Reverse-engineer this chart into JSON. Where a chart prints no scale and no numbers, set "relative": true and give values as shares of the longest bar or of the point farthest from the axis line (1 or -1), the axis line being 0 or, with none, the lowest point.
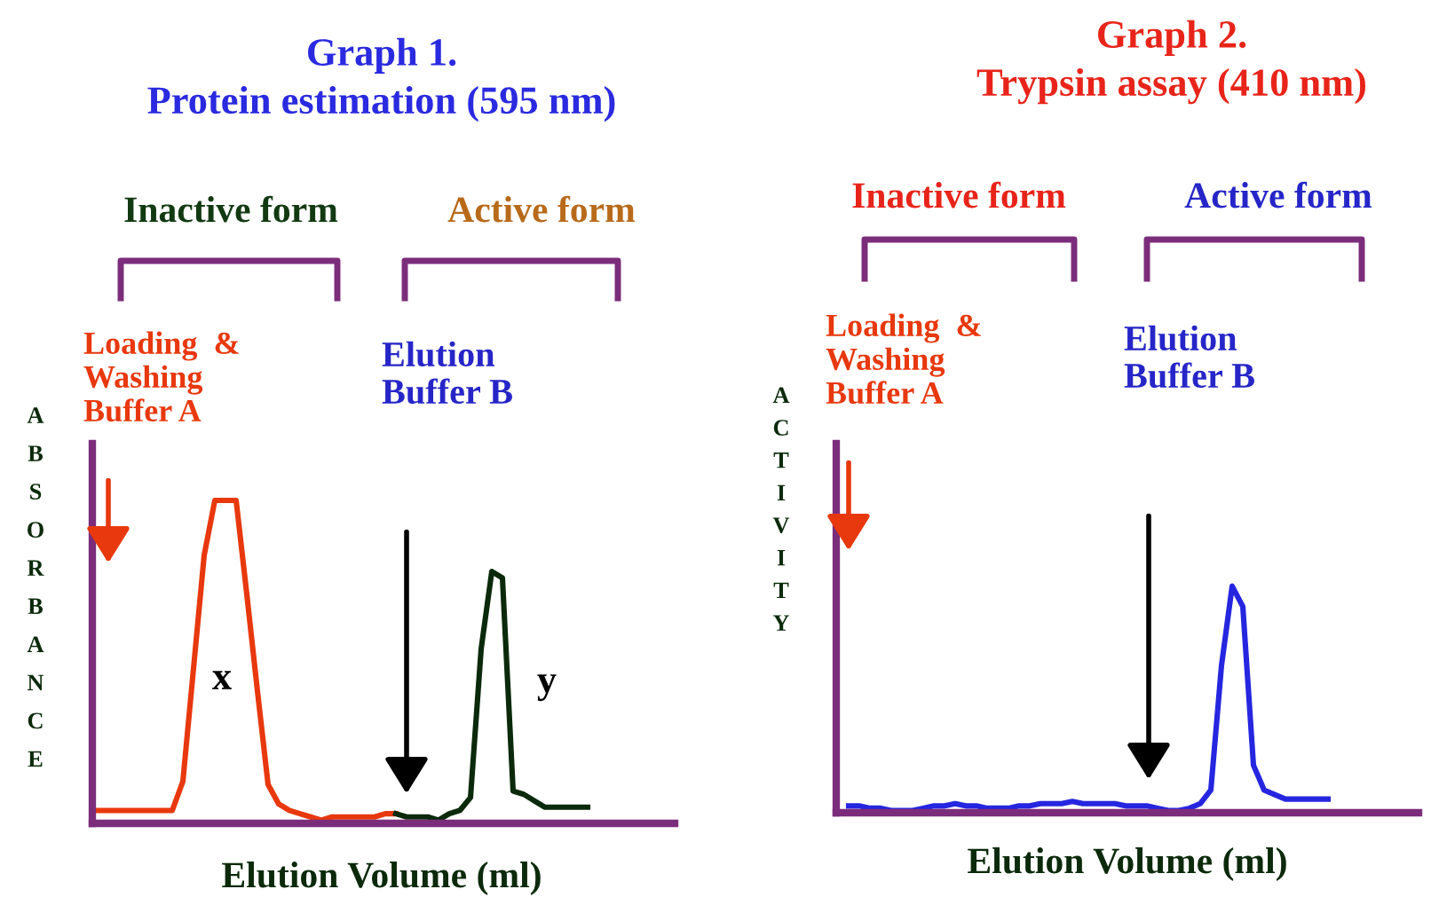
{
  "chart_data": [
    {
      "type": "line",
      "title": "Graph 1.\nProtein estimation (595 nm)",
      "xlabel": "Elution Volume (ml)",
      "ylabel": "ABSORBANCE",
      "relative": true,
      "grid": false,
      "legend": false,
      "marker": "none",
      "line_style": "solid",
      "categories": [
        null,
        null,
        null,
        null,
        null,
        null,
        null,
        null,
        null,
        null,
        null,
        null,
        null,
        null,
        null,
        null,
        null,
        null,
        null,
        null,
        null,
        null,
        null,
        null,
        null,
        null,
        null,
        null,
        null,
        null,
        null,
        null,
        null,
        null,
        null,
        null,
        null,
        null,
        null,
        null,
        null,
        null,
        null,
        null,
        null,
        null,
        null
      ],
      "series": [
        {
          "color": "#e8380d",
          "values": [
            0.04,
            0.04,
            0.04,
            0.04,
            0.04,
            0.04,
            0.04,
            0.04,
            0.13,
            0.48,
            0.83,
            1,
            1,
            1,
            0.71,
            0.41,
            0.12,
            0.06,
            0.04,
            0.03,
            0.02,
            0.01,
            0.02,
            0.02,
            0.02,
            0.02,
            0.02,
            0.03,
            0.03,
            null,
            null,
            null,
            null,
            null,
            null,
            null,
            null,
            null,
            null,
            null,
            null,
            null,
            null,
            null,
            null,
            null,
            null
          ]
        },
        {
          "color": "#0b2a0b",
          "values": [
            null,
            null,
            null,
            null,
            null,
            null,
            null,
            null,
            null,
            null,
            null,
            null,
            null,
            null,
            null,
            null,
            null,
            null,
            null,
            null,
            null,
            null,
            null,
            null,
            null,
            null,
            null,
            null,
            0.03,
            0.02,
            0.02,
            0.02,
            0.01,
            0.03,
            0.04,
            0.08,
            0.54,
            0.78,
            0.76,
            0.1,
            0.09,
            0.07,
            0.05,
            0.05,
            0.05,
            0.05,
            0.05
          ]
        }
      ],
      "annotations": [
        "Inactive form",
        "Active form",
        "Loading  &\nWashing\nBuffer A",
        "Elution\nBuffer B",
        "x",
        "y"
      ]
    },
    {
      "type": "line",
      "title": "Graph 2.\nTrypsin assay (410 nm)",
      "xlabel": "Elution Volume (ml)",
      "ylabel": "ACTIVITY",
      "relative": true,
      "grid": false,
      "legend": false,
      "marker": "none",
      "line_style": "solid",
      "categories": [
        null,
        null,
        null,
        null,
        null,
        null,
        null,
        null,
        null,
        null,
        null,
        null,
        null,
        null,
        null,
        null,
        null,
        null,
        null,
        null,
        null,
        null,
        null,
        null,
        null,
        null,
        null,
        null,
        null,
        null,
        null,
        null,
        null,
        null,
        null,
        null,
        null,
        null,
        null,
        null,
        null,
        null,
        null,
        null,
        null,
        null
      ],
      "series": [
        {
          "color": "#2626e0",
          "values": [
            0.03,
            0.03,
            0.02,
            0.02,
            0.01,
            0.01,
            0.01,
            0.02,
            0.03,
            0.03,
            0.04,
            0.03,
            0.03,
            0.02,
            0.02,
            0.02,
            0.03,
            0.03,
            0.04,
            0.04,
            0.04,
            0.05,
            0.04,
            0.04,
            0.04,
            0.04,
            0.03,
            0.03,
            0.03,
            0.02,
            0.01,
            0.01,
            0.02,
            0.04,
            0.1,
            0.65,
            1.0,
            0.91,
            0.21,
            0.1,
            0.08,
            0.06,
            0.06,
            0.06,
            0.06,
            0.06
          ]
        }
      ],
      "annotations": [
        "Inactive form",
        "Active form",
        "Loading  &\nWashing\nBuffer A",
        "Elution\nBuffer B"
      ]
    }
  ]
}
